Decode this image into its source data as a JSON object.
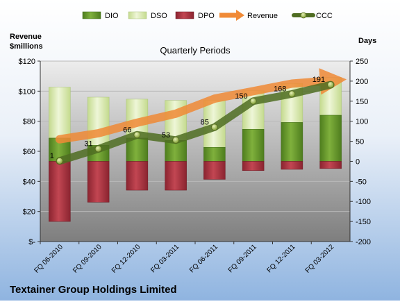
{
  "chart_data": {
    "type": "bar",
    "title": "Quarterly Periods",
    "footer_title": "Textainer Group Holdings Limited",
    "left_axis_title": "Revenue\n$millions",
    "right_axis_title": "Days",
    "categories": [
      "FQ 06-2010",
      "FQ 09-2010",
      "FQ 12-2010",
      "FQ 03-2011",
      "FQ 06-2011",
      "FQ 09-2011",
      "FQ 12-2011",
      "FQ 03-2012"
    ],
    "left_axis": {
      "min": 0,
      "max": 120,
      "ticks": [
        0,
        20,
        40,
        60,
        80,
        100,
        120
      ],
      "tick_labels": [
        "$-",
        "$20",
        "$40",
        "$60",
        "$80",
        "$100",
        "$120"
      ]
    },
    "right_axis": {
      "min": -200,
      "max": 250,
      "ticks": [
        -200,
        -150,
        -100,
        -50,
        0,
        50,
        100,
        150,
        200,
        250
      ],
      "tick_labels": [
        "-200",
        "-150",
        "-100",
        "-50",
        "0",
        "50",
        "100",
        "150",
        "200",
        "250"
      ]
    },
    "legend": [
      "DIO",
      "DSO",
      "DPO",
      "Revenue",
      "CCC"
    ],
    "series": [
      {
        "name": "DIO",
        "axis": "right",
        "kind": "stacked-bar",
        "color": "#6a9a2c",
        "values": [
          58,
          40,
          58,
          52,
          35,
          80,
          97,
          115
        ]
      },
      {
        "name": "DSO",
        "axis": "right",
        "kind": "stacked-bar",
        "color": "#d7e8b0",
        "values": [
          127,
          120,
          97,
          100,
          117,
          96,
          97,
          94
        ]
      },
      {
        "name": "DPO",
        "axis": "right",
        "kind": "negative-bar",
        "color": "#b33a45",
        "values": [
          -150,
          -102,
          -72,
          -72,
          -45,
          -23,
          -20,
          -18
        ]
      },
      {
        "name": "Revenue",
        "axis": "left",
        "kind": "line",
        "color": "#f08a36",
        "values": [
          68,
          72,
          79,
          85,
          95,
          100,
          105,
          107
        ]
      },
      {
        "name": "CCC",
        "axis": "right",
        "kind": "line",
        "color": "#5f7f2a",
        "values": [
          1,
          31,
          66,
          53,
          85,
          150,
          168,
          191
        ],
        "data_labels": [
          "1",
          "31",
          "66",
          "53",
          "85",
          "150",
          "168",
          "191"
        ]
      }
    ]
  }
}
